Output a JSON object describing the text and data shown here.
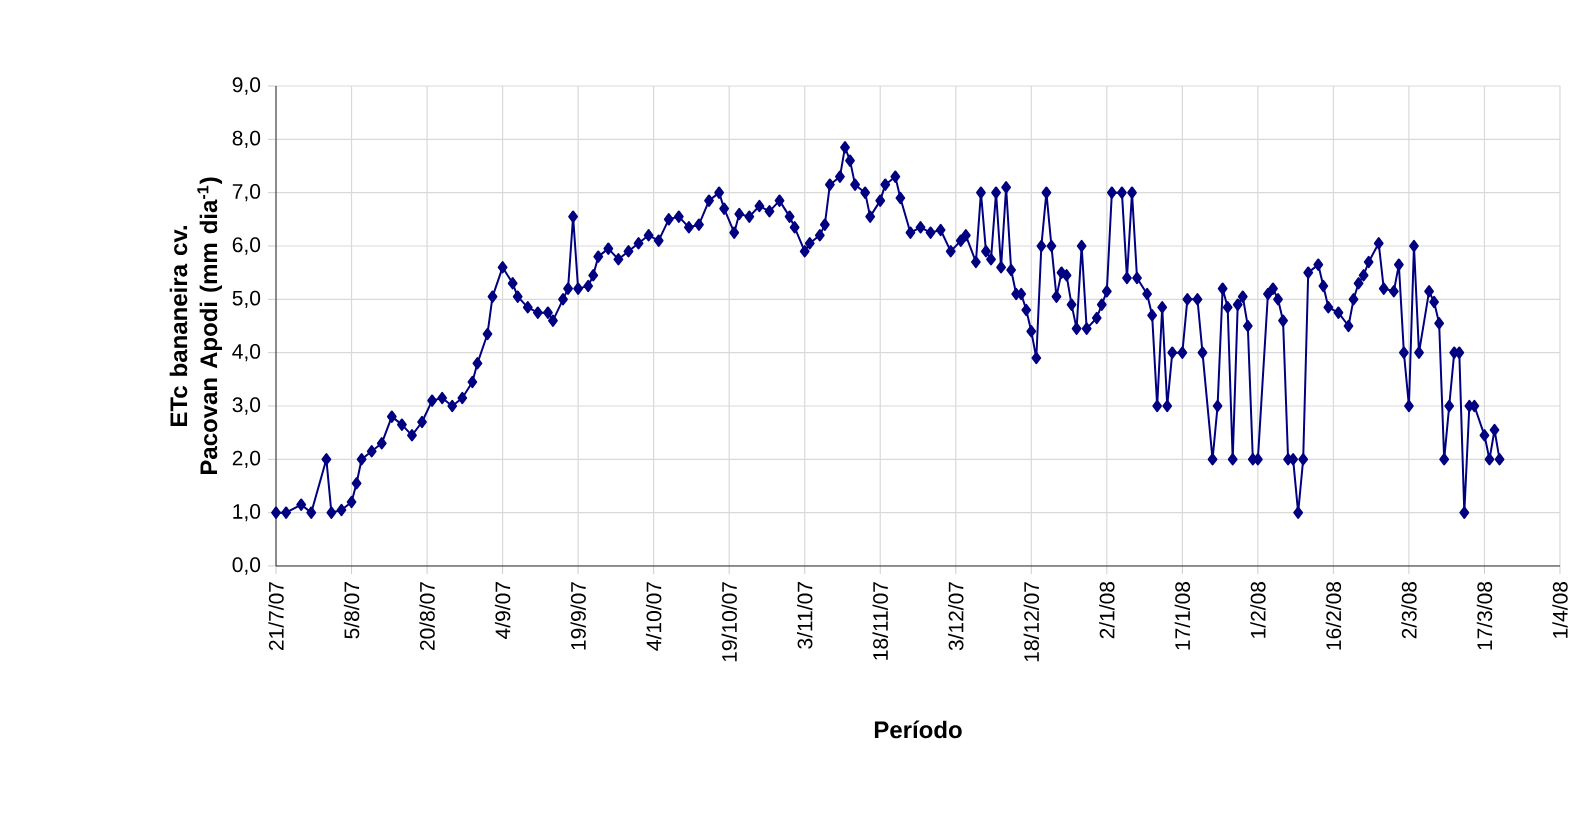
{
  "chart_data": {
    "type": "line",
    "xlabel": "Período",
    "ylabel": "ETc bananeira cv. Pacovan Apodi (mm dia$^{-1}$)",
    "xlim": [
      "2007-07-21",
      "2008-04-01"
    ],
    "xticks": [
      {
        "value": "2007-07-21",
        "label": "21/7/07"
      },
      {
        "value": "2007-08-05",
        "label": "5/8/07"
      },
      {
        "value": "2007-08-20",
        "label": "20/8/07"
      },
      {
        "value": "2007-09-04",
        "label": "4/9/07"
      },
      {
        "value": "2007-09-19",
        "label": "19/9/07"
      },
      {
        "value": "2007-10-04",
        "label": "4/10/07"
      },
      {
        "value": "2007-10-19",
        "label": "19/10/07"
      },
      {
        "value": "2007-11-03",
        "label": "3/11/07"
      },
      {
        "value": "2007-11-18",
        "label": "18/11/07"
      },
      {
        "value": "2007-12-03",
        "label": "3/12/07"
      },
      {
        "value": "2007-12-18",
        "label": "18/12/07"
      },
      {
        "value": "2008-01-02",
        "label": "2/1/08"
      },
      {
        "value": "2008-01-17",
        "label": "17/1/08"
      },
      {
        "value": "2008-02-01",
        "label": "1/2/08"
      },
      {
        "value": "2008-02-16",
        "label": "16/2/08"
      },
      {
        "value": "2008-03-02",
        "label": "2/3/08"
      },
      {
        "value": "2008-03-17",
        "label": "17/3/08"
      },
      {
        "value": "2008-04-01",
        "label": "1/4/08"
      }
    ],
    "ylim": [
      0,
      9
    ],
    "yticks": [
      {
        "value": 0,
        "label": "0,0"
      },
      {
        "value": 1,
        "label": "1,0"
      },
      {
        "value": 2,
        "label": "2,0"
      },
      {
        "value": 3,
        "label": "3,0"
      },
      {
        "value": 4,
        "label": "4,0"
      },
      {
        "value": 5,
        "label": "5,0"
      },
      {
        "value": 6,
        "label": "6,0"
      },
      {
        "value": 7,
        "label": "7,0"
      },
      {
        "value": 8,
        "label": "8,0"
      },
      {
        "value": 9,
        "label": "9,0"
      }
    ],
    "grid": true,
    "marker": "diamond",
    "line_style": "solid",
    "series": [
      {
        "color": "#000080",
        "x": [
          "2007-07-21",
          "2007-07-23",
          "2007-07-26",
          "2007-07-28",
          "2007-07-31",
          "2007-08-01",
          "2007-08-03",
          "2007-08-05",
          "2007-08-06",
          "2007-08-07",
          "2007-08-09",
          "2007-08-11",
          "2007-08-13",
          "2007-08-15",
          "2007-08-17",
          "2007-08-19",
          "2007-08-21",
          "2007-08-23",
          "2007-08-25",
          "2007-08-27",
          "2007-08-29",
          "2007-08-30",
          "2007-09-01",
          "2007-09-02",
          "2007-09-04",
          "2007-09-06",
          "2007-09-07",
          "2007-09-09",
          "2007-09-11",
          "2007-09-13",
          "2007-09-14",
          "2007-09-16",
          "2007-09-17",
          "2007-09-18",
          "2007-09-19",
          "2007-09-21",
          "2007-09-22",
          "2007-09-23",
          "2007-09-25",
          "2007-09-27",
          "2007-09-29",
          "2007-10-01",
          "2007-10-03",
          "2007-10-05",
          "2007-10-07",
          "2007-10-09",
          "2007-10-11",
          "2007-10-13",
          "2007-10-15",
          "2007-10-17",
          "2007-10-18",
          "2007-10-20",
          "2007-10-21",
          "2007-10-23",
          "2007-10-25",
          "2007-10-27",
          "2007-10-29",
          "2007-10-31",
          "2007-11-01",
          "2007-11-03",
          "2007-11-04",
          "2007-11-06",
          "2007-11-07",
          "2007-11-08",
          "2007-11-10",
          "2007-11-11",
          "2007-11-12",
          "2007-11-13",
          "2007-11-15",
          "2007-11-16",
          "2007-11-18",
          "2007-11-19",
          "2007-11-21",
          "2007-11-22",
          "2007-11-24",
          "2007-11-26",
          "2007-11-28",
          "2007-11-30",
          "2007-12-02",
          "2007-12-04",
          "2007-12-05",
          "2007-12-07",
          "2007-12-08",
          "2007-12-09",
          "2007-12-10",
          "2007-12-11",
          "2007-12-12",
          "2007-12-13",
          "2007-12-14",
          "2007-12-15",
          "2007-12-16",
          "2007-12-17",
          "2007-12-18",
          "2007-12-19",
          "2007-12-20",
          "2007-12-21",
          "2007-12-22",
          "2007-12-23",
          "2007-12-24",
          "2007-12-25",
          "2007-12-26",
          "2007-12-27",
          "2007-12-28",
          "2007-12-29",
          "2007-12-31",
          "2008-01-01",
          "2008-01-02",
          "2008-01-03",
          "2008-01-05",
          "2008-01-06",
          "2008-01-07",
          "2008-01-08",
          "2008-01-10",
          "2008-01-11",
          "2008-01-12",
          "2008-01-13",
          "2008-01-14",
          "2008-01-15",
          "2008-01-17",
          "2008-01-18",
          "2008-01-20",
          "2008-01-21",
          "2008-01-23",
          "2008-01-24",
          "2008-01-25",
          "2008-01-26",
          "2008-01-27",
          "2008-01-28",
          "2008-01-29",
          "2008-01-30",
          "2008-01-31",
          "2008-02-01",
          "2008-02-03",
          "2008-02-04",
          "2008-02-05",
          "2008-02-06",
          "2008-02-07",
          "2008-02-08",
          "2008-02-09",
          "2008-02-10",
          "2008-02-11",
          "2008-02-13",
          "2008-02-14",
          "2008-02-15",
          "2008-02-17",
          "2008-02-19",
          "2008-02-20",
          "2008-02-21",
          "2008-02-22",
          "2008-02-23",
          "2008-02-25",
          "2008-02-26",
          "2008-02-28",
          "2008-02-29",
          "2008-03-01",
          "2008-03-02",
          "2008-03-03",
          "2008-03-04",
          "2008-03-06",
          "2008-03-07",
          "2008-03-08",
          "2008-03-09",
          "2008-03-10",
          "2008-03-11",
          "2008-03-12",
          "2008-03-13",
          "2008-03-14",
          "2008-03-15",
          "2008-03-17",
          "2008-03-18",
          "2008-03-19",
          "2008-03-20"
        ],
        "values": [
          1.0,
          1.0,
          1.15,
          1.0,
          2.0,
          1.0,
          1.05,
          1.2,
          1.55,
          2.0,
          2.15,
          2.3,
          2.8,
          2.65,
          2.45,
          2.7,
          3.1,
          3.15,
          3.0,
          3.15,
          3.45,
          3.8,
          4.35,
          5.05,
          5.6,
          5.3,
          5.05,
          4.85,
          4.75,
          4.75,
          4.6,
          5.0,
          5.2,
          6.55,
          5.2,
          5.25,
          5.45,
          5.8,
          5.95,
          5.75,
          5.9,
          6.05,
          6.2,
          6.1,
          6.5,
          6.55,
          6.35,
          6.4,
          6.85,
          7.0,
          6.7,
          6.25,
          6.6,
          6.55,
          6.75,
          6.65,
          6.85,
          6.55,
          6.35,
          5.9,
          6.05,
          6.2,
          6.4,
          7.15,
          7.3,
          7.85,
          7.6,
          7.15,
          7.0,
          6.55,
          6.85,
          7.15,
          7.3,
          6.9,
          6.25,
          6.35,
          6.25,
          6.3,
          5.9,
          6.1,
          6.2,
          5.7,
          7.0,
          5.9,
          5.75,
          7.0,
          5.6,
          7.1,
          5.55,
          5.1,
          5.1,
          4.8,
          4.4,
          3.9,
          6.0,
          7.0,
          6.0,
          5.05,
          5.5,
          5.45,
          4.9,
          4.45,
          6.0,
          4.45,
          4.65,
          4.9,
          5.15,
          7.0,
          7.0,
          5.4,
          7.0,
          5.4,
          5.1,
          4.7,
          3.0,
          4.85,
          3.0,
          4.0,
          4.0,
          5.0,
          5.0,
          4.0,
          2.0,
          3.0,
          5.2,
          4.85,
          2.0,
          4.9,
          5.05,
          4.5,
          2.0,
          2.0,
          5.1,
          5.2,
          5.0,
          4.6,
          2.0,
          2.0,
          1.0,
          2.0,
          5.5,
          5.65,
          5.25,
          4.85,
          4.75,
          4.5,
          5.0,
          5.3,
          5.45,
          5.7,
          6.05,
          5.2,
          5.15,
          5.65,
          4.0,
          3.0,
          6.0,
          4.0,
          5.15,
          4.95,
          4.55,
          2.0,
          3.0,
          4.0,
          4.0,
          1.0,
          3.0,
          3.0,
          2.45,
          2.0,
          2.55,
          2.0
        ]
      }
    ]
  }
}
